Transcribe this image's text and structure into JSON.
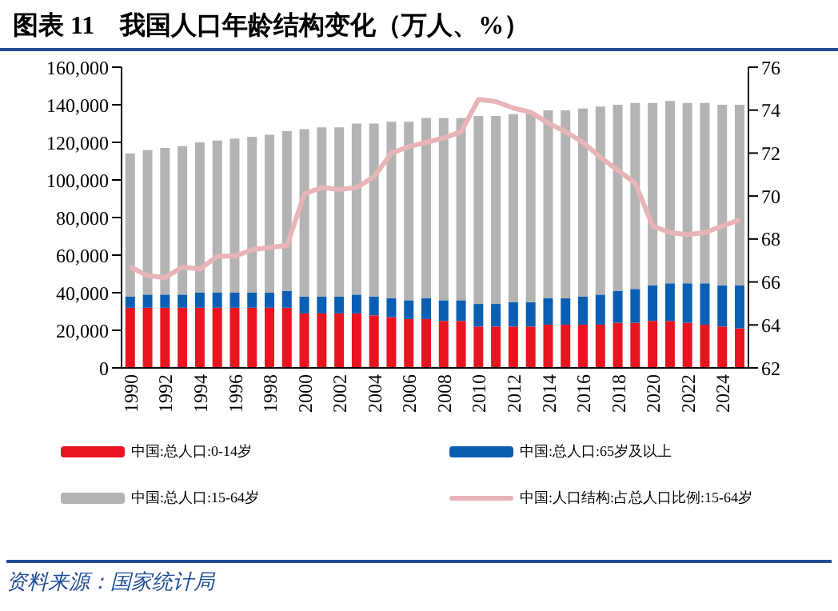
{
  "chart_data": {
    "type": "bar",
    "title": "图表 11　我国人口年龄结构变化（万人、%）",
    "categories": [
      "1990",
      null,
      "1992",
      null,
      "1994",
      null,
      "1996",
      null,
      "1998",
      null,
      "2000",
      null,
      "2002",
      null,
      "2004",
      null,
      "2006",
      null,
      "2008",
      null,
      "2010",
      null,
      "2012",
      null,
      "2014",
      null,
      "2016",
      null,
      "2018",
      null,
      "2020",
      null,
      "2022",
      null,
      "2024",
      null
    ],
    "stacked": true,
    "series": [
      {
        "name": "中国:总人口:0-14岁",
        "color": "#e8141f",
        "values": [
          32000,
          32000,
          32000,
          32000,
          32000,
          32000,
          32000,
          32000,
          32000,
          32000,
          29000,
          29000,
          29000,
          29000,
          28000,
          27000,
          26000,
          26000,
          25000,
          25000,
          22000,
          22000,
          22000,
          22000,
          23000,
          23000,
          23000,
          23000,
          24000,
          24000,
          25000,
          25000,
          24000,
          23000,
          22000,
          21000
        ]
      },
      {
        "name": "中国:总人口:65岁及以上",
        "color": "#0a5fb4",
        "values": [
          6000,
          7000,
          7000,
          7000,
          8000,
          8000,
          8000,
          8000,
          8000,
          9000,
          9000,
          9000,
          9000,
          10000,
          10000,
          10000,
          10000,
          11000,
          11000,
          11000,
          12000,
          12000,
          13000,
          13000,
          14000,
          14000,
          15000,
          16000,
          17000,
          18000,
          19000,
          20000,
          21000,
          22000,
          22000,
          23000
        ]
      },
      {
        "name": "中国:总人口:15-64岁",
        "color": "#b3b3b3",
        "values": [
          76000,
          77000,
          78000,
          79000,
          80000,
          81000,
          82000,
          83000,
          84000,
          85000,
          89000,
          90000,
          90000,
          91000,
          92000,
          94000,
          95000,
          96000,
          97000,
          97000,
          100000,
          100000,
          100000,
          101000,
          100000,
          100000,
          100000,
          100000,
          99000,
          99000,
          97000,
          97000,
          96000,
          96000,
          96000,
          96000
        ]
      },
      {
        "name": "中国:人口结构:占总人口比例:15-64岁",
        "type": "line",
        "axis": "y2",
        "color": "#e8b4b8",
        "values": [
          66.7,
          66.3,
          66.2,
          66.7,
          66.6,
          67.2,
          67.2,
          67.5,
          67.6,
          67.7,
          70.1,
          70.4,
          70.3,
          70.4,
          70.9,
          72.0,
          72.3,
          72.5,
          72.7,
          73.0,
          74.5,
          74.4,
          74.1,
          73.9,
          73.4,
          73.0,
          72.5,
          71.8,
          71.2,
          70.6,
          68.6,
          68.3,
          68.2,
          68.3,
          68.6,
          68.9
        ]
      }
    ],
    "ylim": [
      0,
      160000
    ],
    "yticks": [
      0,
      {
        "value": 20000,
        "label": "20,000"
      },
      {
        "value": 40000,
        "label": "40,000"
      },
      {
        "value": 60000,
        "label": "60,000"
      },
      {
        "value": 80000,
        "label": "80,000"
      },
      {
        "value": 100000,
        "label": "100,000"
      },
      {
        "value": 120000,
        "label": "120,000"
      },
      {
        "value": 140000,
        "label": "140,000"
      },
      {
        "value": 160000,
        "label": "160,000"
      }
    ],
    "y2lim": [
      62,
      76
    ],
    "y2ticks": [
      62,
      64,
      66,
      68,
      70,
      72,
      74,
      76
    ],
    "legend": "bottom",
    "annotations": [
      "资料来源：国家统计局"
    ]
  }
}
